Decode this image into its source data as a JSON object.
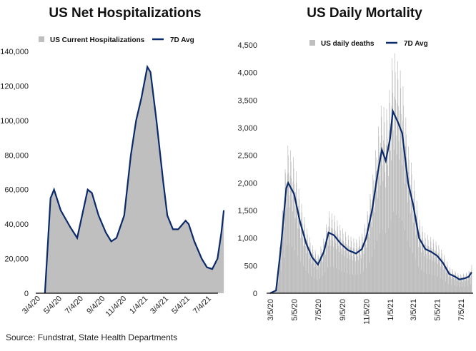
{
  "chart_data": [
    {
      "type": "area",
      "title": "US Net Hospitalizations",
      "legend": [
        "US Current Hospitalizations",
        "7D Avg"
      ],
      "legend_position": "top",
      "ylim": [
        0,
        140000
      ],
      "yticks": [
        "0",
        "20,000",
        "40,000",
        "60,000",
        "80,000",
        "100,000",
        "120,000",
        "140,000"
      ],
      "xticks": [
        "3/4/20",
        "5/4/20",
        "7/4/20",
        "9/4/20",
        "11/4/20",
        "1/4/21",
        "3/4/21",
        "5/4/21",
        "7/4/21"
      ],
      "series": [
        {
          "name": "7D Avg",
          "points": [
            [
              "2020-03-20",
              0
            ],
            [
              "2020-04-05",
              55000
            ],
            [
              "2020-04-15",
              60000
            ],
            [
              "2020-05-04",
              48000
            ],
            [
              "2020-06-01",
              38000
            ],
            [
              "2020-06-20",
              32000
            ],
            [
              "2020-07-04",
              45000
            ],
            [
              "2020-07-20",
              60000
            ],
            [
              "2020-08-01",
              58000
            ],
            [
              "2020-08-20",
              45000
            ],
            [
              "2020-09-10",
              35000
            ],
            [
              "2020-09-25",
              30000
            ],
            [
              "2020-10-10",
              32000
            ],
            [
              "2020-11-01",
              45000
            ],
            [
              "2020-11-20",
              80000
            ],
            [
              "2020-12-05",
              100000
            ],
            [
              "2020-12-20",
              113000
            ],
            [
              "2021-01-06",
              131000
            ],
            [
              "2021-01-15",
              128000
            ],
            [
              "2021-02-01",
              100000
            ],
            [
              "2021-02-20",
              65000
            ],
            [
              "2021-03-04",
              45000
            ],
            [
              "2021-03-20",
              37000
            ],
            [
              "2021-04-04",
              37000
            ],
            [
              "2021-04-25",
              42000
            ],
            [
              "2021-05-04",
              40000
            ],
            [
              "2021-05-20",
              30000
            ],
            [
              "2021-06-10",
              20000
            ],
            [
              "2021-06-25",
              15000
            ],
            [
              "2021-07-10",
              14000
            ],
            [
              "2021-07-25",
              20000
            ],
            [
              "2021-08-05",
              35000
            ],
            [
              "2021-08-12",
              48000
            ]
          ]
        }
      ],
      "colors": {
        "area": "#bfbfbf",
        "line": "#0b2a6b"
      }
    },
    {
      "type": "bar+line",
      "title": "US Daily Mortality",
      "legend": [
        "US daily deaths",
        "7D Avg"
      ],
      "legend_position": "top",
      "ylim": [
        0,
        4500
      ],
      "yticks": [
        "0",
        "500",
        "1,000",
        "1,500",
        "2,000",
        "2,500",
        "3,000",
        "3,500",
        "4,000",
        "4,500"
      ],
      "xticks": [
        "3/5/20",
        "5/5/20",
        "7/5/20",
        "9/5/20",
        "11/5/20",
        "1/5/21",
        "3/5/21",
        "5/5/21",
        "7/5/21"
      ],
      "series": [
        {
          "name": "7D Avg",
          "points": [
            [
              "2020-03-05",
              0
            ],
            [
              "2020-03-20",
              50
            ],
            [
              "2020-04-01",
              800
            ],
            [
              "2020-04-15",
              1900
            ],
            [
              "2020-04-20",
              2000
            ],
            [
              "2020-05-05",
              1800
            ],
            [
              "2020-05-20",
              1300
            ],
            [
              "2020-06-05",
              900
            ],
            [
              "2020-06-20",
              650
            ],
            [
              "2020-07-05",
              520
            ],
            [
              "2020-07-20",
              750
            ],
            [
              "2020-08-01",
              1100
            ],
            [
              "2020-08-15",
              1050
            ],
            [
              "2020-09-01",
              900
            ],
            [
              "2020-09-20",
              780
            ],
            [
              "2020-10-10",
              720
            ],
            [
              "2020-10-25",
              800
            ],
            [
              "2020-11-05",
              1000
            ],
            [
              "2020-11-20",
              1500
            ],
            [
              "2020-12-05",
              2200
            ],
            [
              "2020-12-15",
              2600
            ],
            [
              "2020-12-25",
              2400
            ],
            [
              "2021-01-05",
              2800
            ],
            [
              "2021-01-12",
              3300
            ],
            [
              "2021-01-25",
              3100
            ],
            [
              "2021-02-05",
              2900
            ],
            [
              "2021-02-20",
              2000
            ],
            [
              "2021-03-05",
              1600
            ],
            [
              "2021-03-20",
              1000
            ],
            [
              "2021-04-05",
              800
            ],
            [
              "2021-04-20",
              750
            ],
            [
              "2021-05-05",
              680
            ],
            [
              "2021-05-20",
              550
            ],
            [
              "2021-06-05",
              350
            ],
            [
              "2021-06-20",
              300
            ],
            [
              "2021-07-01",
              250
            ],
            [
              "2021-07-15",
              270
            ],
            [
              "2021-07-25",
              300
            ],
            [
              "2021-08-01",
              380
            ]
          ]
        },
        {
          "name": "US daily deaths",
          "peak_to_avg": 1.35,
          "trough_to_avg": 0.45
        }
      ],
      "colors": {
        "bar": "#bfbfbf",
        "line": "#0b2a6b"
      }
    }
  ],
  "source": "Source: Fundstrat, State Health Departments"
}
